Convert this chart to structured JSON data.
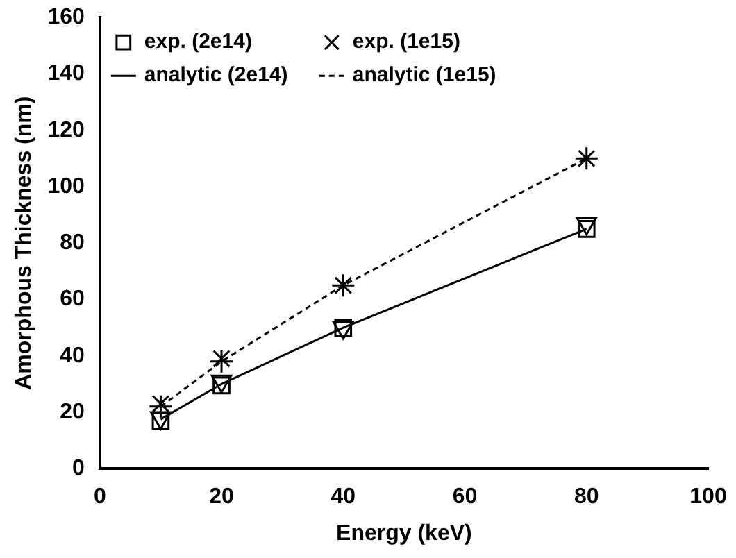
{
  "chart_data": {
    "type": "scatter",
    "xlabel": "Energy (keV)",
    "ylabel": "Amorphous Thickness (nm)",
    "x": [
      10,
      20,
      40,
      80
    ],
    "xlim": [
      0,
      100
    ],
    "xticks": [
      0,
      20,
      40,
      60,
      80,
      100
    ],
    "ylim": [
      0,
      160
    ],
    "yticks": [
      0,
      20,
      40,
      60,
      80,
      100,
      120,
      140,
      160
    ],
    "grid": false,
    "legend": "top left",
    "series": [
      {
        "name": "exp. (2e14)",
        "marker": "square",
        "color": "#000000",
        "values": [
          17,
          29.5,
          50,
          85
        ]
      },
      {
        "name": "exp. (1e15)",
        "marker": "cross",
        "color": "#000000",
        "values": [
          23,
          39,
          65,
          110
        ]
      },
      {
        "marker": "triangle",
        "color": "#000000",
        "values": [
          18,
          31,
          50,
          87
        ]
      },
      {
        "marker": "plus",
        "color": "#000000",
        "values": [
          22,
          38,
          65,
          110
        ]
      },
      {
        "name": "analytic (2e14)",
        "type": "line",
        "marker": "none",
        "line_style": "solid",
        "color": "#000000",
        "values": [
          17.5,
          30,
          50,
          85
        ]
      },
      {
        "name": "analytic (1e15)",
        "type": "line",
        "marker": "none",
        "line_style": "dashed",
        "color": "#000000",
        "values": [
          22,
          38,
          65,
          110
        ]
      }
    ]
  }
}
